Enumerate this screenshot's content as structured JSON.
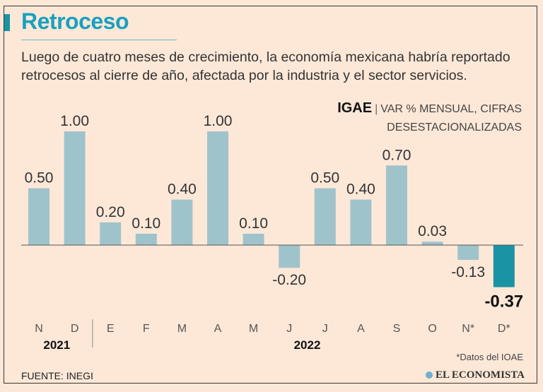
{
  "header": {
    "title": "Retroceso",
    "subtitle": "Luego de cuatro meses de crecimiento, la economía mexicana habría reportado retrocesos al cierre de año, afectada por la industria y el sector servicios.",
    "indicator": "IGAE",
    "unit_line1": "VAR % MENSUAL, CIFRAS",
    "unit_line2": "DESESTACIONALIZADAS"
  },
  "chart_data": {
    "type": "bar",
    "categories": [
      "N",
      "D",
      "E",
      "F",
      "M",
      "A",
      "M",
      "J",
      "J",
      "A",
      "S",
      "O",
      "N*",
      "D*"
    ],
    "values": [
      0.5,
      1.0,
      0.2,
      0.1,
      0.4,
      1.0,
      0.1,
      -0.2,
      0.5,
      0.4,
      0.7,
      0.03,
      -0.13,
      -0.37
    ],
    "labels": [
      "0.50",
      "1.00",
      "0.20",
      "0.10",
      "0.40",
      "1.00",
      "0.10",
      "-0.20",
      "0.50",
      "0.40",
      "0.70",
      "0.03",
      "-0.13",
      "-0.37"
    ],
    "years": [
      {
        "label": "2021",
        "months": 2
      },
      {
        "label": "2022",
        "months": 12
      }
    ],
    "highlight_index": 13,
    "colors": {
      "bar": "#9fc3cb",
      "highlight": "#1a93a5",
      "baseline": "#555555"
    }
  },
  "footer": {
    "note": "*Datos del IOAE",
    "source": "FUENTE: INEGI",
    "logo": "EL ECONOMISTA"
  }
}
